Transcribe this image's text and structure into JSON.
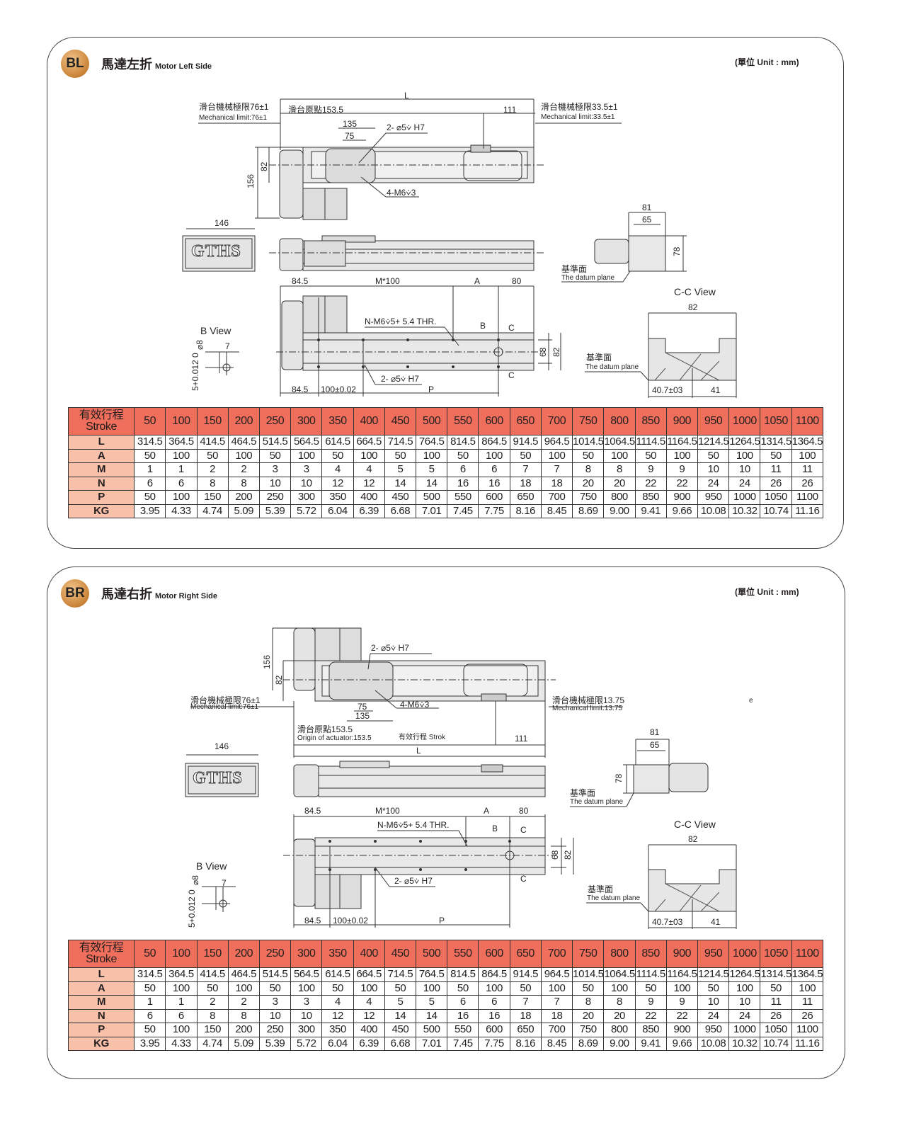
{
  "unit_label": "(單位 Unit : mm)",
  "logo_text": "GTHS",
  "panels": [
    {
      "badge": "BL",
      "title_zh": "馬達左折",
      "title_en": "Motor Left Side",
      "labels": [
        "L",
        "滑台機械極限76±1",
        "Mechanical limit:76±1",
        "滑台原點153.5",
        "111",
        "滑台機械極限33.5±1",
        "Mechanical limit:33.5±1",
        "135",
        "75",
        "2- ⌀5⩒ H7",
        "82",
        "156",
        "4-M6⩒3",
        "146",
        "81",
        "65",
        "78",
        "基準面",
        "The datum plane",
        "84.5",
        "M*100",
        "A",
        "80",
        "C-C View",
        "82",
        "B View",
        "N-M6⩒5+ 5.4 THR.",
        "B",
        "C",
        "C",
        "68",
        "82",
        "基準面",
        "The datum plane",
        "7",
        "⌀8",
        "5+0.012 0",
        "2- ⌀5⩒ H7",
        "84.5",
        "100±0.02",
        "P",
        "40.7±03",
        "41"
      ]
    },
    {
      "badge": "BR",
      "title_zh": "馬達右折",
      "title_en": "Motor Right Side",
      "labels": [
        "156",
        "82",
        "2- ⌀5⩒ H7",
        "滑台機械極限76±1",
        "Mechanical limit:76±1",
        "4-M6⩒3",
        "75",
        "135",
        "滑台機械極限13.75",
        "Mechanical limit:13.75",
        "e",
        "滑台原點153.5",
        "Origin of actuator:153.5",
        "有效行程 Strok",
        "111",
        "L",
        "146",
        "81",
        "65",
        "78",
        "基準面",
        "The datum plane",
        "84.5",
        "M*100",
        "A",
        "80",
        "N-M6⩒5+ 5.4 THR.",
        "B",
        "C",
        "C-C View",
        "82",
        "68",
        "82",
        "B View",
        "2- ⌀5⩒ H7",
        "C",
        "基準面",
        "The datum plane",
        "7",
        "⌀8",
        "5+0.012 0",
        "84.5",
        "100±0.02",
        "P",
        "40.7±03",
        "41"
      ]
    }
  ],
  "table": {
    "header_zh": "有效行程",
    "header_en": "Stroke",
    "strokes": [
      "50",
      "100",
      "150",
      "200",
      "250",
      "300",
      "350",
      "400",
      "450",
      "500",
      "550",
      "600",
      "650",
      "700",
      "750",
      "800",
      "850",
      "900",
      "950",
      "1000",
      "1050",
      "1100"
    ],
    "rows": [
      {
        "name": "L",
        "values": [
          "314.5",
          "364.5",
          "414.5",
          "464.5",
          "514.5",
          "564.5",
          "614.5",
          "664.5",
          "714.5",
          "764.5",
          "814.5",
          "864.5",
          "914.5",
          "964.5",
          "1014.5",
          "1064.5",
          "1114.5",
          "1164.5",
          "1214.5",
          "1264.5",
          "1314.5",
          "1364.5"
        ]
      },
      {
        "name": "A",
        "values": [
          "50",
          "100",
          "50",
          "100",
          "50",
          "100",
          "50",
          "100",
          "50",
          "100",
          "50",
          "100",
          "50",
          "100",
          "50",
          "100",
          "50",
          "100",
          "50",
          "100",
          "50",
          "100"
        ]
      },
      {
        "name": "M",
        "values": [
          "1",
          "1",
          "2",
          "2",
          "3",
          "3",
          "4",
          "4",
          "5",
          "5",
          "6",
          "6",
          "7",
          "7",
          "8",
          "8",
          "9",
          "9",
          "10",
          "10",
          "11",
          "11"
        ]
      },
      {
        "name": "N",
        "values": [
          "6",
          "6",
          "8",
          "8",
          "10",
          "10",
          "12",
          "12",
          "14",
          "14",
          "16",
          "16",
          "18",
          "18",
          "20",
          "20",
          "22",
          "22",
          "24",
          "24",
          "26",
          "26"
        ]
      },
      {
        "name": "P",
        "values": [
          "50",
          "100",
          "150",
          "200",
          "250",
          "300",
          "350",
          "400",
          "450",
          "500",
          "550",
          "600",
          "650",
          "700",
          "750",
          "800",
          "850",
          "900",
          "950",
          "1000",
          "1050",
          "1100"
        ]
      },
      {
        "name": "KG",
        "values": [
          "3.95",
          "4.33",
          "4.74",
          "5.09",
          "5.39",
          "5.72",
          "6.04",
          "6.39",
          "6.68",
          "7.01",
          "7.45",
          "7.75",
          "8.16",
          "8.45",
          "8.69",
          "9.00",
          "9.41",
          "9.66",
          "10.08",
          "10.32",
          "10.74",
          "11.16"
        ]
      }
    ]
  },
  "colors": {
    "table_header": "#ef6f5c",
    "row_header": "#f9c0aa",
    "badge": "#c98236"
  }
}
